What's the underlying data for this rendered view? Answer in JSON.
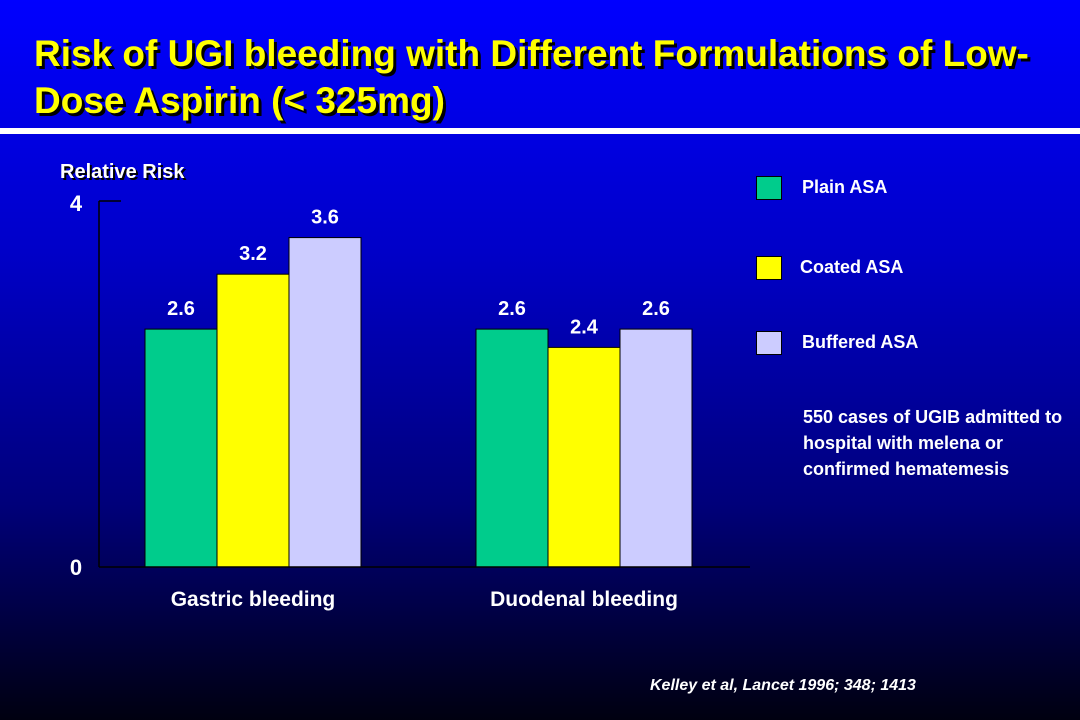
{
  "slide": {
    "title": "Risk of UGI bleeding with Different Formulations of Low-Dose Aspirin (< 325mg)",
    "note": "550 cases of UGIB admitted to hospital with melena or confirmed hematemesis",
    "citation": "Kelley et al, Lancet 1996; 348; 1413"
  },
  "chart_data": {
    "type": "bar",
    "title": "",
    "ylabel": "Relative Risk",
    "xlabel": "",
    "ylim": [
      0,
      4
    ],
    "yticks": [
      "0",
      "4"
    ],
    "categories": [
      "Gastric bleeding",
      "Duodenal bleeding"
    ],
    "series": [
      {
        "name": "Plain ASA",
        "color": "#00cc8c",
        "values": [
          2.6,
          2.6
        ],
        "labels": [
          "2.6",
          "2.6"
        ]
      },
      {
        "name": "Coated ASA",
        "color": "#ffff00",
        "values": [
          3.2,
          2.4
        ],
        "labels": [
          "3.2",
          "2.4"
        ]
      },
      {
        "name": "Buffered ASA",
        "color": "#ccccff",
        "values": [
          3.6,
          2.6
        ],
        "labels": [
          "3.6",
          "2.6"
        ]
      }
    ],
    "grid": false,
    "legend": "right"
  }
}
